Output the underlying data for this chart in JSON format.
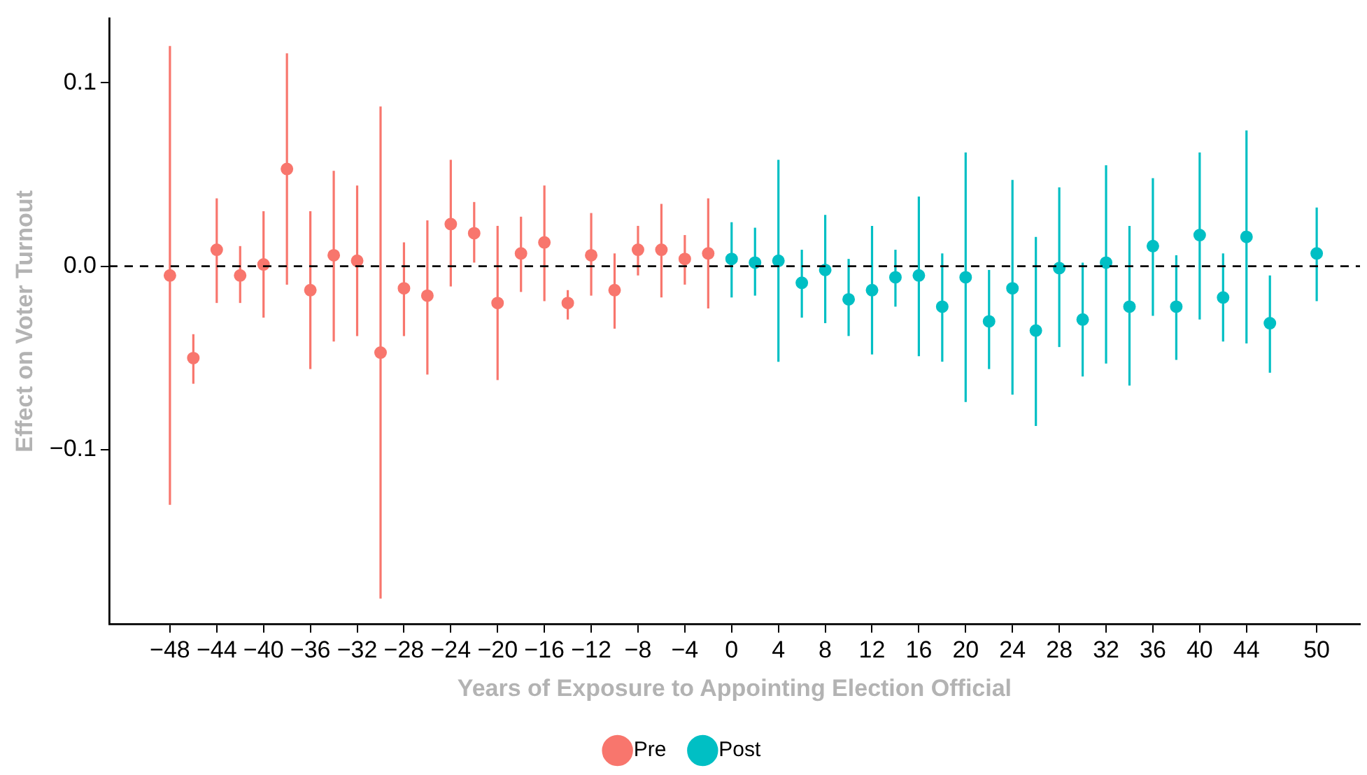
{
  "chart_data": {
    "type": "scatter",
    "xlabel": "Years of Exposure to Appointing Election Official",
    "ylabel": "Effect on Voter Turnout",
    "xlim": [
      -53.2,
      53.7
    ],
    "ylim": [
      -0.195,
      0.135
    ],
    "xticks": [
      -48,
      -44,
      -40,
      -36,
      -32,
      -28,
      -24,
      -20,
      -16,
      -12,
      -8,
      -4,
      0,
      4,
      8,
      12,
      16,
      20,
      24,
      28,
      32,
      36,
      40,
      44,
      50
    ],
    "yticks": [
      {
        "value": -0.1,
        "label": "−0.1"
      },
      {
        "value": 0,
        "label": "0.0"
      },
      {
        "value": 0.1,
        "label": "0.1"
      }
    ],
    "grid": false,
    "legend": "bottom",
    "marker": "circle",
    "ref_lines": [
      {
        "axis": "y",
        "value": 0,
        "color": "#000000",
        "line_style": "dashed"
      }
    ],
    "series": [
      {
        "name": "Pre",
        "color": "#f8766d",
        "x": [
          -48,
          -46,
          -44,
          -42,
          -40,
          -38,
          -36,
          -34,
          -32,
          -30,
          -28,
          -26,
          -24,
          -22,
          -20,
          -18,
          -16,
          -14,
          -12,
          -10,
          -8,
          -6,
          -4,
          -2
        ],
        "values": [
          -0.005,
          -0.05,
          0.009,
          -0.005,
          0.001,
          0.053,
          -0.013,
          0.006,
          0.003,
          -0.047,
          -0.012,
          -0.016,
          0.023,
          0.018,
          -0.02,
          0.007,
          0.013,
          -0.02,
          0.006,
          -0.013,
          0.009,
          0.009,
          0.004,
          0.007
        ],
        "errors": [
          [
            -0.13,
            0.12
          ],
          [
            -0.064,
            -0.037
          ],
          [
            -0.02,
            0.037
          ],
          [
            -0.02,
            0.011
          ],
          [
            -0.028,
            0.03
          ],
          [
            -0.01,
            0.116
          ],
          [
            -0.056,
            0.03
          ],
          [
            -0.041,
            0.052
          ],
          [
            -0.038,
            0.044
          ],
          [
            -0.181,
            0.087
          ],
          [
            -0.038,
            0.013
          ],
          [
            -0.059,
            0.025
          ],
          [
            -0.011,
            0.058
          ],
          [
            0.002,
            0.035
          ],
          [
            -0.062,
            0.022
          ],
          [
            -0.014,
            0.027
          ],
          [
            -0.019,
            0.044
          ],
          [
            -0.029,
            -0.013
          ],
          [
            -0.016,
            0.029
          ],
          [
            -0.034,
            0.007
          ],
          [
            -0.005,
            0.022
          ],
          [
            -0.017,
            0.034
          ],
          [
            -0.01,
            0.017
          ],
          [
            -0.023,
            0.037
          ]
        ]
      },
      {
        "name": "Post",
        "color": "#00bfc4",
        "x": [
          0,
          2,
          4,
          6,
          8,
          10,
          12,
          14,
          16,
          18,
          20,
          22,
          24,
          26,
          28,
          30,
          32,
          34,
          36,
          38,
          40,
          42,
          44,
          46,
          50
        ],
        "values": [
          0.004,
          0.002,
          0.003,
          -0.009,
          -0.002,
          -0.018,
          -0.013,
          -0.006,
          -0.005,
          -0.022,
          -0.006,
          -0.03,
          -0.012,
          -0.035,
          -0.001,
          -0.029,
          0.002,
          -0.022,
          0.011,
          -0.022,
          0.017,
          -0.017,
          0.016,
          -0.031,
          0.007
        ],
        "errors": [
          [
            -0.017,
            0.024
          ],
          [
            -0.016,
            0.021
          ],
          [
            -0.052,
            0.058
          ],
          [
            -0.028,
            0.009
          ],
          [
            -0.031,
            0.028
          ],
          [
            -0.038,
            0.004
          ],
          [
            -0.048,
            0.022
          ],
          [
            -0.022,
            0.009
          ],
          [
            -0.049,
            0.038
          ],
          [
            -0.052,
            0.007
          ],
          [
            -0.074,
            0.062
          ],
          [
            -0.056,
            -0.002
          ],
          [
            -0.07,
            0.047
          ],
          [
            -0.087,
            0.016
          ],
          [
            -0.044,
            0.043
          ],
          [
            -0.06,
            0.002
          ],
          [
            -0.053,
            0.055
          ],
          [
            -0.065,
            0.022
          ],
          [
            -0.027,
            0.048
          ],
          [
            -0.051,
            0.006
          ],
          [
            -0.029,
            0.062
          ],
          [
            -0.041,
            0.007
          ],
          [
            -0.042,
            0.074
          ],
          [
            -0.058,
            -0.005
          ],
          [
            -0.019,
            0.032
          ]
        ]
      }
    ]
  }
}
